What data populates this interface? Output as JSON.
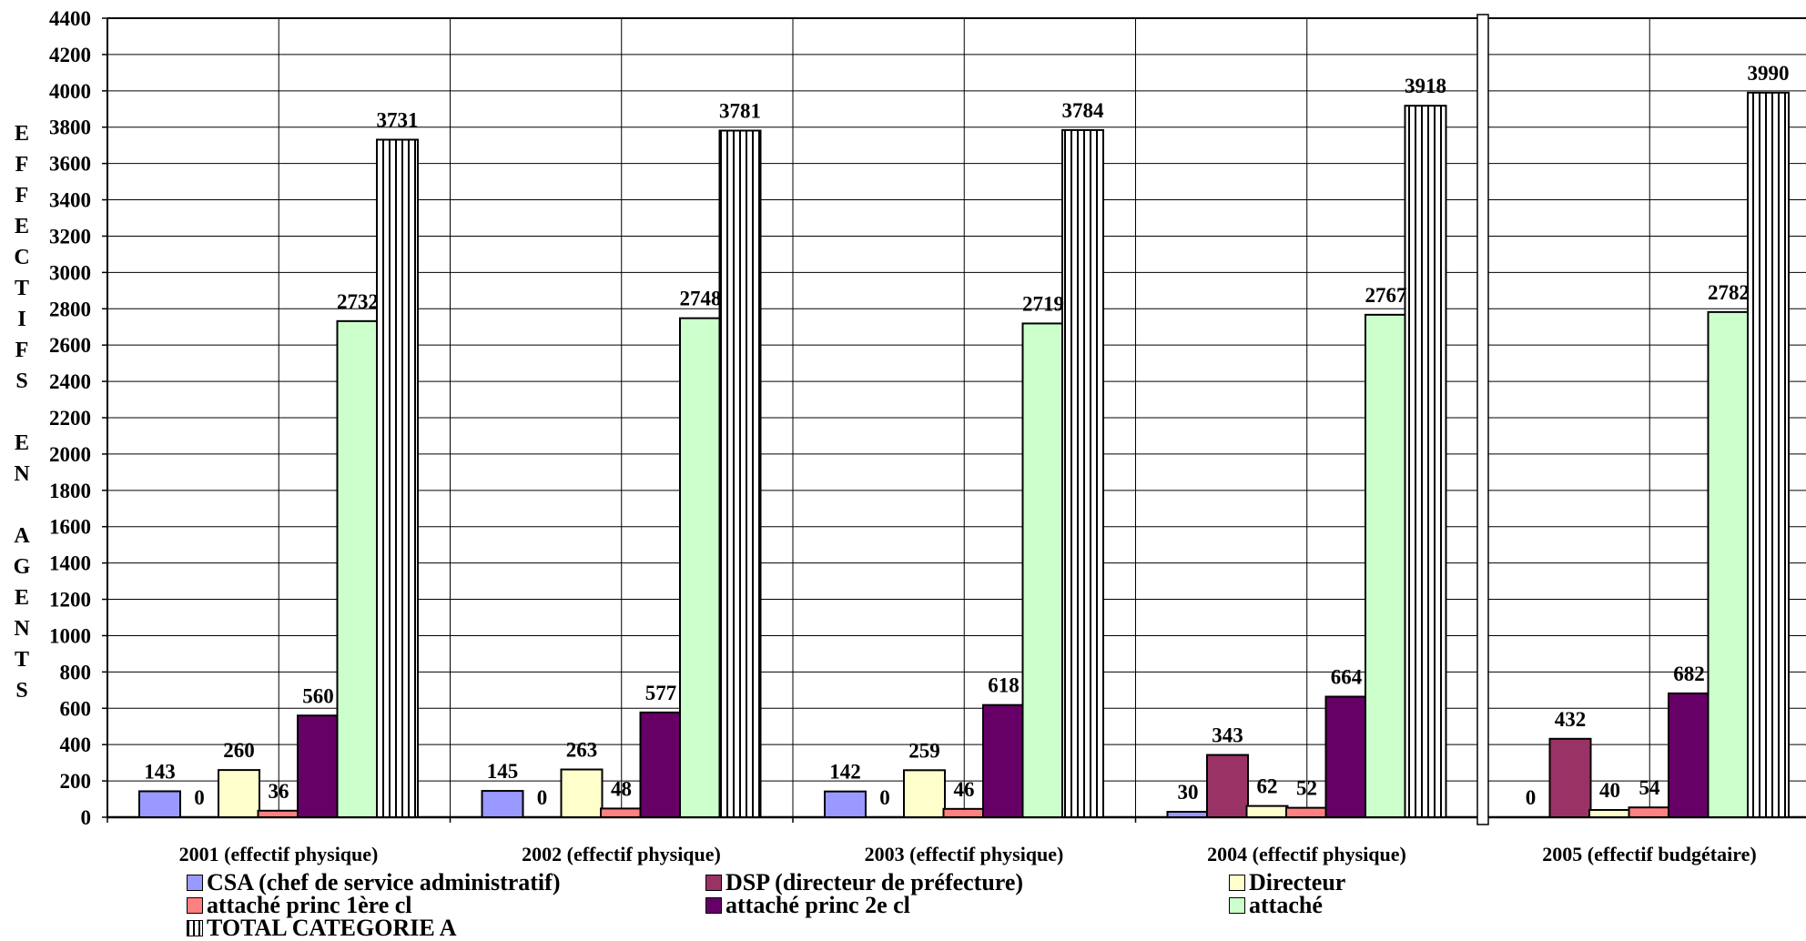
{
  "chart_data": {
    "type": "bar",
    "ylabel": "EFFECTIFS EN AGENTS",
    "ylim": [
      0,
      4400
    ],
    "ytick_step": 200,
    "grid": true,
    "legend_position": "bottom",
    "categories": [
      "2001 (effectif physique)",
      "2002 (effectif physique)",
      "2003 (effectif physique)",
      "2004 (effectif physique)",
      "2005 (effectif budgétaire)"
    ],
    "series": [
      {
        "name": "CSA (chef de service administratif)",
        "color": "#9999ff",
        "pattern": "solid",
        "values": [
          143,
          145,
          142,
          30,
          0
        ]
      },
      {
        "name": "DSP (directeur de préfecture)",
        "color": "#993366",
        "pattern": "solid",
        "values": [
          0,
          0,
          0,
          343,
          432
        ]
      },
      {
        "name": "Directeur",
        "color": "#ffffcc",
        "pattern": "solid",
        "values": [
          260,
          263,
          259,
          62,
          40
        ]
      },
      {
        "name": "attaché princ 1ère cl",
        "color": "#ff8080",
        "pattern": "solid",
        "values": [
          36,
          48,
          46,
          52,
          54
        ]
      },
      {
        "name": "attaché princ 2e cl",
        "color": "#660066",
        "pattern": "solid",
        "values": [
          560,
          577,
          618,
          664,
          682
        ]
      },
      {
        "name": "attaché",
        "color": "#ccffcc",
        "pattern": "solid",
        "values": [
          2732,
          2748,
          2719,
          2767,
          2782
        ]
      },
      {
        "name": "TOTAL CATEGORIE A",
        "color": "#ffffff",
        "pattern": "vstripes",
        "values": [
          3731,
          3781,
          3784,
          3918,
          3990
        ]
      }
    ],
    "data_labels": [
      [
        "143",
        "0",
        "260",
        "36",
        "560",
        "2732",
        "3731"
      ],
      [
        "145",
        "0",
        "263",
        "48",
        "577",
        "2748",
        "3781"
      ],
      [
        "142",
        "0",
        "259",
        "46",
        "618",
        "2719",
        "3784"
      ],
      [
        "30",
        "343",
        "62",
        "52",
        "664",
        "2767",
        "3918"
      ],
      [
        "0",
        "432",
        "40",
        "54",
        "682",
        "2782",
        "3990"
      ]
    ]
  },
  "ylabel_letters": [
    "E",
    "F",
    "F",
    "E",
    "C",
    "T",
    "I",
    "F",
    "S",
    "",
    "E",
    "N",
    "",
    "A",
    "G",
    "E",
    "N",
    "T",
    "S"
  ]
}
